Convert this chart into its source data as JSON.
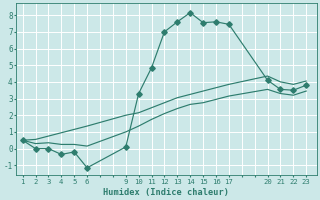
{
  "xlabel": "Humidex (Indice chaleur)",
  "bg_color": "#cce8e8",
  "grid_color": "#ffffff",
  "line_color": "#2e7d6e",
  "xlim": [
    0.5,
    23.8
  ],
  "ylim": [
    -1.6,
    8.7
  ],
  "xticks_all": [
    1,
    2,
    3,
    4,
    5,
    6,
    7,
    8,
    9,
    10,
    11,
    12,
    13,
    14,
    15,
    16,
    17,
    18,
    19,
    20,
    21,
    22,
    23
  ],
  "xtick_labels_show": [
    1,
    2,
    3,
    4,
    5,
    6,
    9,
    10,
    11,
    12,
    13,
    14,
    15,
    16,
    17,
    20,
    21,
    22,
    23
  ],
  "yticks": [
    -1,
    0,
    1,
    2,
    3,
    4,
    5,
    6,
    7,
    8
  ],
  "line1_x": [
    1,
    2,
    3,
    4,
    5,
    6,
    9,
    10,
    11,
    12,
    13,
    14,
    15,
    16,
    17,
    20,
    21,
    22,
    23
  ],
  "line1_y": [
    0.5,
    0.0,
    0.0,
    -0.35,
    -0.2,
    -1.15,
    0.1,
    3.3,
    4.85,
    7.0,
    7.6,
    8.15,
    7.55,
    7.6,
    7.45,
    4.1,
    3.55,
    3.5,
    3.8
  ],
  "line2_x": [
    1,
    2,
    3,
    4,
    5,
    6,
    9,
    10,
    11,
    12,
    13,
    14,
    15,
    16,
    17,
    20,
    21,
    22,
    23
  ],
  "line2_y": [
    0.5,
    0.55,
    0.75,
    0.95,
    1.15,
    1.35,
    2.0,
    2.15,
    2.45,
    2.75,
    3.05,
    3.25,
    3.45,
    3.65,
    3.85,
    4.35,
    4.0,
    3.85,
    4.05
  ],
  "line3_x": [
    1,
    2,
    3,
    4,
    5,
    6,
    9,
    10,
    11,
    12,
    13,
    14,
    15,
    16,
    17,
    20,
    21,
    22,
    23
  ],
  "line3_y": [
    0.5,
    0.3,
    0.35,
    0.25,
    0.25,
    0.15,
    1.0,
    1.35,
    1.75,
    2.1,
    2.4,
    2.65,
    2.75,
    2.95,
    3.15,
    3.55,
    3.3,
    3.2,
    3.45
  ]
}
